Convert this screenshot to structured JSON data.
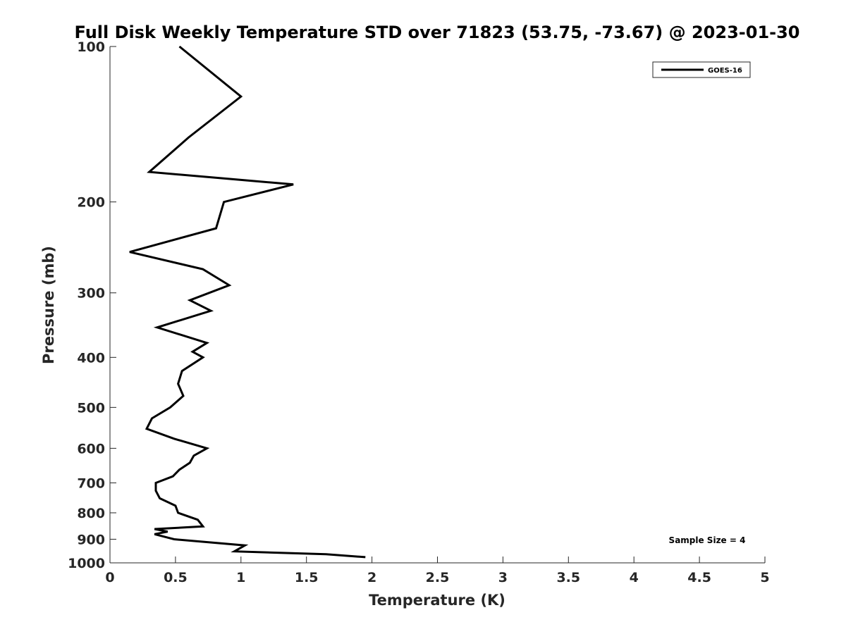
{
  "chart_data": {
    "type": "line",
    "title": "Full Disk Weekly Temperature STD over 71823 (53.75, -73.67) @ 2023-01-30",
    "xlabel": "Temperature (K)",
    "ylabel": "Pressure (mb)",
    "xlim": [
      0,
      5
    ],
    "ylim": [
      100,
      1000
    ],
    "yscale": "log",
    "y_reversed": true,
    "x_ticks": [
      "0",
      "0.5",
      "1",
      "1.5",
      "2",
      "2.5",
      "3",
      "3.5",
      "4",
      "4.5",
      "5"
    ],
    "y_ticks": [
      "100",
      "200",
      "300",
      "400",
      "500",
      "600",
      "700",
      "800",
      "900",
      "1000"
    ],
    "grid": false,
    "legend_position": "top-right",
    "annotation": "Sample Size = 4",
    "series": [
      {
        "name": "GOES-16",
        "color": "#000000",
        "points": [
          [
            0.53,
            100
          ],
          [
            1.0,
            125
          ],
          [
            0.6,
            150
          ],
          [
            0.3,
            175
          ],
          [
            1.4,
            185
          ],
          [
            0.87,
            200
          ],
          [
            0.81,
            225
          ],
          [
            0.15,
            250
          ],
          [
            0.71,
            270
          ],
          [
            0.91,
            290
          ],
          [
            0.61,
            310
          ],
          [
            0.77,
            325
          ],
          [
            0.36,
            350
          ],
          [
            0.74,
            375
          ],
          [
            0.63,
            390
          ],
          [
            0.71,
            400
          ],
          [
            0.55,
            425
          ],
          [
            0.52,
            450
          ],
          [
            0.56,
            475
          ],
          [
            0.46,
            500
          ],
          [
            0.32,
            525
          ],
          [
            0.28,
            550
          ],
          [
            0.49,
            575
          ],
          [
            0.74,
            600
          ],
          [
            0.64,
            620
          ],
          [
            0.61,
            640
          ],
          [
            0.53,
            660
          ],
          [
            0.48,
            680
          ],
          [
            0.35,
            700
          ],
          [
            0.35,
            725
          ],
          [
            0.38,
            750
          ],
          [
            0.5,
            775
          ],
          [
            0.52,
            800
          ],
          [
            0.67,
            825
          ],
          [
            0.71,
            850
          ],
          [
            0.34,
            860
          ],
          [
            0.44,
            870
          ],
          [
            0.34,
            880
          ],
          [
            0.49,
            900
          ],
          [
            1.03,
            925
          ],
          [
            0.95,
            950
          ],
          [
            1.65,
            962
          ],
          [
            1.95,
            975
          ]
        ]
      }
    ]
  }
}
